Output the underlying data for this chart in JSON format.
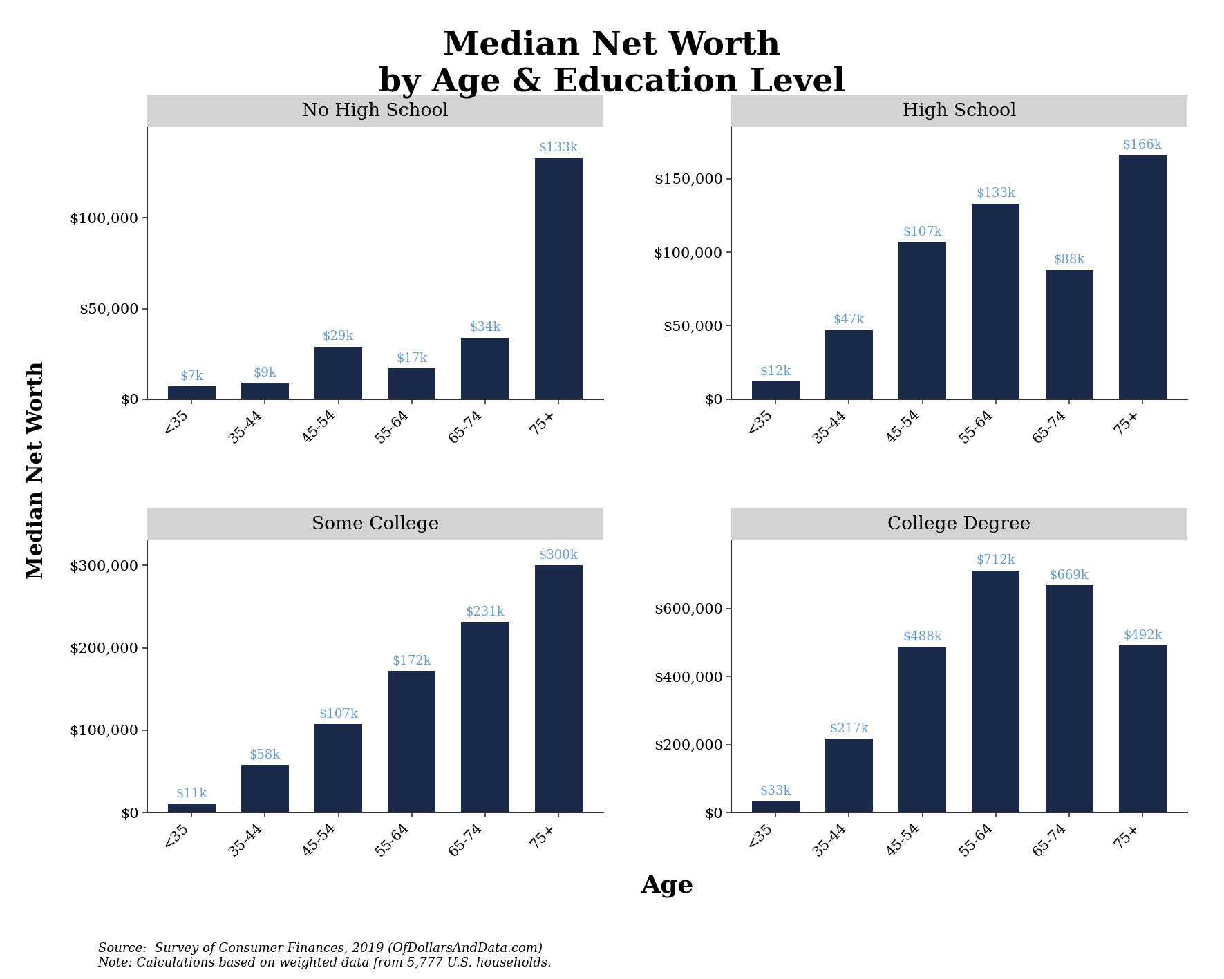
{
  "title": "Median Net Worth\nby Age & Education Level",
  "ylabel": "Median Net Worth",
  "xlabel": "Age",
  "source_text": "Source:  Survey of Consumer Finances, 2019 (OfDollarsAndData.com)\nNote: Calculations based on weighted data from 5,777 U.S. households.",
  "age_labels": [
    "<35",
    "35-44",
    "45-54",
    "55-64",
    "65-74",
    "75+"
  ],
  "subplots": [
    {
      "title": "No High School",
      "values": [
        7000,
        9000,
        29000,
        17000,
        34000,
        133000
      ],
      "labels": [
        "$7k",
        "$9k",
        "$29k",
        "$17k",
        "$34k",
        "$133k"
      ],
      "ylim": [
        0,
        150000
      ],
      "yticks": [
        0,
        50000,
        100000
      ],
      "yticklabels": [
        "$0",
        "$50,000",
        "$100,000"
      ]
    },
    {
      "title": "High School",
      "values": [
        12000,
        47000,
        107000,
        133000,
        88000,
        166000
      ],
      "labels": [
        "$12k",
        "$47k",
        "$107k",
        "$133k",
        "$88k",
        "$166k"
      ],
      "ylim": [
        0,
        185000
      ],
      "yticks": [
        0,
        50000,
        100000,
        150000
      ],
      "yticklabels": [
        "$0",
        "$50,000",
        "$100,000",
        "$150,000"
      ]
    },
    {
      "title": "Some College",
      "values": [
        11000,
        58000,
        107000,
        172000,
        231000,
        300000
      ],
      "labels": [
        "$11k",
        "$58k",
        "$107k",
        "$172k",
        "$231k",
        "$300k"
      ],
      "ylim": [
        0,
        330000
      ],
      "yticks": [
        0,
        100000,
        200000,
        300000
      ],
      "yticklabels": [
        "$0",
        "$100,000",
        "$200,000",
        "$300,000"
      ]
    },
    {
      "title": "College Degree",
      "values": [
        33000,
        217000,
        488000,
        712000,
        669000,
        492000
      ],
      "labels": [
        "$33k",
        "$217k",
        "$488k",
        "$712k",
        "$669k",
        "$492k"
      ],
      "ylim": [
        0,
        800000
      ],
      "yticks": [
        0,
        200000,
        400000,
        600000
      ],
      "yticklabels": [
        "$0",
        "$200,000",
        "$400,000",
        "$600,000"
      ]
    }
  ],
  "bar_color": "#1B2A4A",
  "label_color": "#6B9EC7",
  "background_color": "#ffffff",
  "subplot_bg_color": "#ffffff",
  "facet_bg_color": "#D3D3D3",
  "spine_color": "#333333"
}
